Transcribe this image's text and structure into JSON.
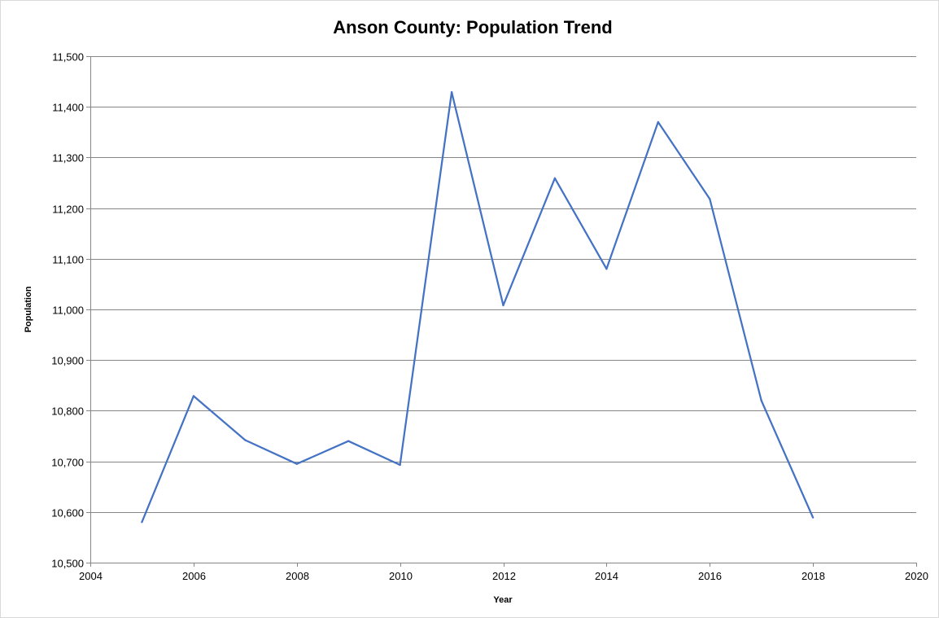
{
  "chart_data": {
    "type": "scatter",
    "title": "Anson County: Population Trend",
    "xlabel": "Year",
    "ylabel": "Population",
    "xlim": [
      2004,
      2020
    ],
    "ylim": [
      10500,
      11500
    ],
    "x_ticks": [
      2004,
      2006,
      2008,
      2010,
      2012,
      2014,
      2016,
      2018,
      2020
    ],
    "x_tick_labels": [
      "2004",
      "2006",
      "2008",
      "2010",
      "2012",
      "2014",
      "2016",
      "2018",
      "2020"
    ],
    "y_ticks": [
      10500,
      10600,
      10700,
      10800,
      10900,
      11000,
      11100,
      11200,
      11300,
      11400,
      11500
    ],
    "y_tick_labels": [
      "10,500",
      "10,600",
      "10,700",
      "10,800",
      "10,900",
      "11,000",
      "11,100",
      "11,200",
      "11,300",
      "11,400",
      "11,500"
    ],
    "grid": "horizontal",
    "legend": "none",
    "series": [
      {
        "color": "#4472C4",
        "x": [
          2005,
          2006,
          2007,
          2008,
          2009,
          2010,
          2011,
          2012,
          2013,
          2014,
          2015,
          2016,
          2017,
          2018
        ],
        "y": [
          10580,
          10829,
          10742,
          10695,
          10740,
          10693,
          11429,
          11008,
          11259,
          11080,
          11370,
          11218,
          10820,
          10589
        ]
      }
    ]
  }
}
